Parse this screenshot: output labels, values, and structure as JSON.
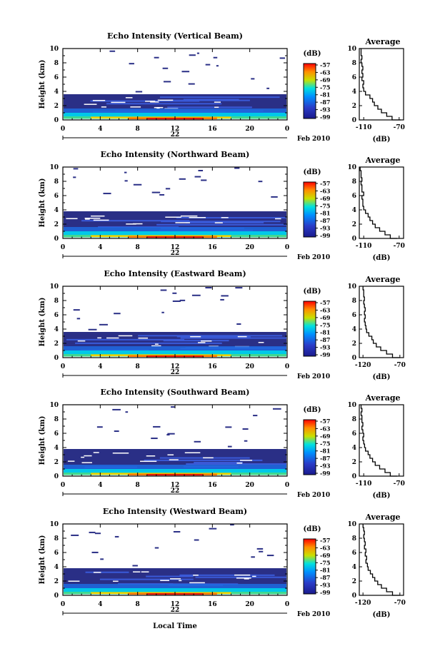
{
  "figure": {
    "xlabel": "Local Time",
    "date_label": "Feb 2010",
    "colorbar_unit": "(dB)",
    "colorbar_ticks": [
      "-57",
      "-63",
      "-69",
      "-75",
      "-81",
      "-87",
      "-93",
      "-99"
    ],
    "average_title": "Average",
    "average_xlabel": "(dB)"
  },
  "chart_data": [
    {
      "type": "heatmap",
      "title": "Echo Intensity (Vertical Beam)",
      "ylabel": "Height (km)",
      "xlabel": "Local Time",
      "x_ticks": [
        "0",
        "4",
        "8",
        "12",
        "16",
        "20",
        "0"
      ],
      "y_ticks": [
        "0",
        "2",
        "4",
        "6",
        "8",
        "10"
      ],
      "xlim": [
        0,
        24
      ],
      "ylim": [
        0,
        10
      ],
      "day_label": "22",
      "colorbar": {
        "label": "(dB)",
        "range": [
          -99,
          -57
        ],
        "ticks": [
          -57,
          -63,
          -69,
          -75,
          -81,
          -87,
          -93,
          -99
        ],
        "colors": [
          "#ff0000",
          "#ff8000",
          "#ffe000",
          "#00e0ff",
          "#0060ff",
          "#1a1a8c"
        ]
      },
      "echo_top_km": 3.6,
      "intense_layer_km": [
        0,
        0.6
      ],
      "average_profile": {
        "title": "Average",
        "xlabel": "(dB)",
        "xticks": [
          "-110",
          "-70"
        ],
        "xlim": [
          -115,
          -65
        ],
        "ylim": [
          0,
          10
        ],
        "height_km": [
          0,
          0.5,
          1,
          1.5,
          2,
          2.5,
          3,
          3.5,
          4,
          4.5,
          5,
          5.5,
          6,
          6.5,
          7,
          7.5,
          8,
          8.5,
          9,
          9.5,
          10
        ],
        "db": [
          -68,
          -78,
          -84,
          -90,
          -94,
          -98,
          -100,
          -103,
          -108,
          -110,
          -111,
          -110,
          -112,
          -111,
          -112,
          -111,
          -112,
          -113,
          -112,
          -113,
          -113
        ]
      }
    },
    {
      "type": "heatmap",
      "title": "Echo Intensity (Northward Beam)",
      "ylabel": "Height (km)",
      "xlabel": "Local Time",
      "x_ticks": [
        "0",
        "4",
        "8",
        "12",
        "16",
        "20",
        "0"
      ],
      "y_ticks": [
        "0",
        "2",
        "4",
        "6",
        "8",
        "10"
      ],
      "xlim": [
        0,
        24
      ],
      "ylim": [
        0,
        10
      ],
      "day_label": "22",
      "colorbar": {
        "label": "(dB)",
        "range": [
          -99,
          -57
        ],
        "ticks": [
          -57,
          -63,
          -69,
          -75,
          -81,
          -87,
          -93,
          -99
        ],
        "colors": [
          "#ff0000",
          "#ff8000",
          "#ffe000",
          "#00e0ff",
          "#0060ff",
          "#1a1a8c"
        ]
      },
      "echo_top_km": 3.8,
      "intense_layer_km": [
        0,
        0.6
      ],
      "average_profile": {
        "title": "Average",
        "xlabel": "(dB)",
        "xticks": [
          "-110",
          "-70"
        ],
        "xlim": [
          -115,
          -65
        ],
        "ylim": [
          0,
          10
        ],
        "height_km": [
          0,
          0.5,
          1,
          1.5,
          2,
          2.5,
          3,
          3.5,
          4,
          4.5,
          5,
          5.5,
          6,
          6.5,
          7,
          7.5,
          8,
          8.5,
          9,
          9.5,
          10
        ],
        "db": [
          -72,
          -80,
          -86,
          -92,
          -97,
          -100,
          -103,
          -105,
          -108,
          -110,
          -111,
          -111,
          -112,
          -110,
          -112,
          -112,
          -113,
          -112,
          -113,
          -113,
          -114
        ]
      }
    },
    {
      "type": "heatmap",
      "title": "Echo Intensity (Eastward Beam)",
      "ylabel": "Height (km)",
      "xlabel": "Local Time",
      "x_ticks": [
        "0",
        "4",
        "8",
        "12",
        "16",
        "20",
        "0"
      ],
      "y_ticks": [
        "0",
        "2",
        "4",
        "6",
        "8",
        "10"
      ],
      "xlim": [
        0,
        24
      ],
      "ylim": [
        0,
        10
      ],
      "day_label": "22",
      "colorbar": {
        "label": "(dB)",
        "range": [
          -99,
          -57
        ],
        "ticks": [
          -57,
          -63,
          -69,
          -75,
          -81,
          -87,
          -93,
          -99
        ],
        "colors": [
          "#ff0000",
          "#ff8000",
          "#ffe000",
          "#00e0ff",
          "#0060ff",
          "#1a1a8c"
        ]
      },
      "echo_top_km": 3.6,
      "intense_layer_km": [
        0,
        0.6
      ],
      "average_profile": {
        "title": "Average",
        "xlabel": "(dB)",
        "xticks": [
          "-120",
          "-70"
        ],
        "xlim": [
          -125,
          -65
        ],
        "ylim": [
          0,
          10
        ],
        "height_km": [
          0,
          0.5,
          1,
          1.5,
          2,
          2.5,
          3,
          3.5,
          4,
          4.5,
          5,
          5.5,
          6,
          6.5,
          7,
          7.5,
          8,
          8.5,
          9,
          9.5,
          10
        ],
        "db": [
          -70,
          -80,
          -88,
          -96,
          -102,
          -106,
          -108,
          -112,
          -115,
          -116,
          -117,
          -118,
          -117,
          -118,
          -117,
          -118,
          -119,
          -118,
          -119,
          -119,
          -120
        ]
      }
    },
    {
      "type": "heatmap",
      "title": "Echo Intensity (Southward Beam)",
      "ylabel": "Height (km)",
      "xlabel": "Local Time",
      "x_ticks": [
        "0",
        "4",
        "8",
        "12",
        "16",
        "20",
        "0"
      ],
      "y_ticks": [
        "0",
        "2",
        "4",
        "6",
        "8",
        "10"
      ],
      "xlim": [
        0,
        24
      ],
      "ylim": [
        0,
        10
      ],
      "day_label": "22",
      "colorbar": {
        "label": "(dB)",
        "range": [
          -99,
          -57
        ],
        "ticks": [
          -57,
          -63,
          -69,
          -75,
          -81,
          -87,
          -93,
          -99
        ],
        "colors": [
          "#ff0000",
          "#ff8000",
          "#ffe000",
          "#00e0ff",
          "#0060ff",
          "#1a1a8c"
        ]
      },
      "echo_top_km": 3.8,
      "intense_layer_km": [
        0,
        0.6
      ],
      "average_profile": {
        "title": "Average",
        "xlabel": "(dB)",
        "xticks": [
          "-110",
          "-70"
        ],
        "xlim": [
          -115,
          -65
        ],
        "ylim": [
          0,
          10
        ],
        "height_km": [
          0,
          0.5,
          1,
          1.5,
          2,
          2.5,
          3,
          3.5,
          4,
          4.5,
          5,
          5.5,
          6,
          6.5,
          7,
          7.5,
          8,
          8.5,
          9,
          9.5,
          10
        ],
        "db": [
          -72,
          -80,
          -86,
          -92,
          -97,
          -100,
          -103,
          -105,
          -108,
          -109,
          -110,
          -111,
          -110,
          -111,
          -112,
          -111,
          -112,
          -112,
          -113,
          -112,
          -113
        ]
      }
    },
    {
      "type": "heatmap",
      "title": "Echo Intensity (Westward Beam)",
      "ylabel": "Height (km)",
      "xlabel": "Local Time",
      "x_ticks": [
        "0",
        "4",
        "8",
        "12",
        "16",
        "20",
        "0"
      ],
      "y_ticks": [
        "0",
        "2",
        "4",
        "6",
        "8",
        "10"
      ],
      "xlim": [
        0,
        24
      ],
      "ylim": [
        0,
        10
      ],
      "day_label": "22",
      "colorbar": {
        "label": "(dB)",
        "range": [
          -99,
          -57
        ],
        "ticks": [
          -57,
          -63,
          -69,
          -75,
          -81,
          -87,
          -93,
          -99
        ],
        "colors": [
          "#ff0000",
          "#ff8000",
          "#ffe000",
          "#00e0ff",
          "#0060ff",
          "#1a1a8c"
        ]
      },
      "echo_top_km": 3.8,
      "intense_layer_km": [
        0,
        0.6
      ],
      "average_profile": {
        "title": "Average",
        "xlabel": "(dB)",
        "xticks": [
          "-120",
          "-70"
        ],
        "xlim": [
          -125,
          -65
        ],
        "ylim": [
          0,
          10
        ],
        "height_km": [
          0,
          0.5,
          1,
          1.5,
          2,
          2.5,
          3,
          3.5,
          4,
          4.5,
          5,
          5.5,
          6,
          6.5,
          7,
          7.5,
          8,
          8.5,
          9,
          9.5,
          10
        ],
        "db": [
          -70,
          -80,
          -88,
          -95,
          -100,
          -104,
          -107,
          -110,
          -113,
          -114,
          -116,
          -115,
          -117,
          -116,
          -118,
          -117,
          -118,
          -119,
          -118,
          -119,
          -120
        ]
      }
    }
  ]
}
